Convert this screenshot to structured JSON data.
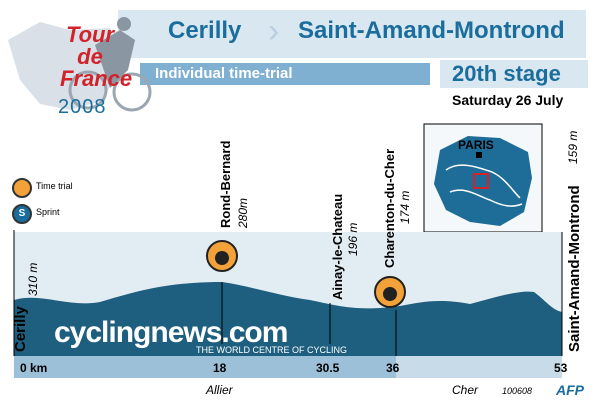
{
  "colors": {
    "accent": "#1a6d9c",
    "profile_fill": "#1e5e7e",
    "logo_red": "#d2232a",
    "brand_blue": "#1a6d9c",
    "bar": "#9cc0d8"
  },
  "logo": {
    "line1": "Tour",
    "line2": "de",
    "line3": "France",
    "year": "2008"
  },
  "header": {
    "start": "Cerilly",
    "arrow": "›",
    "finish": "Saint-Amand-Montrond",
    "subtitle": "Individual time-trial",
    "stage": "20th stage",
    "date": "Saturday 26 July"
  },
  "legend": {
    "time_trial": "Time trial",
    "sprint": "Sprint"
  },
  "map": {
    "city": "PARIS"
  },
  "profile": {
    "start": {
      "name": "Cerilly",
      "alt": "310 m"
    },
    "finish": {
      "name": "Saint-Amand-Montrond",
      "alt": "159 m"
    },
    "points": [
      {
        "name": "Rond-Bernard",
        "alt": "280m"
      },
      {
        "name": "Ainay-le-Chateau",
        "alt": "196 m"
      },
      {
        "name": "Charenton-du-Cher",
        "alt": "174 m"
      }
    ],
    "km": [
      "0 km",
      "18",
      "30.5",
      "36",
      "53"
    ],
    "regions": [
      "Allier",
      "Cher"
    ]
  },
  "watermark": {
    "brand": "cyclingnews.com",
    "tagline": "THE WORLD CENTRE OF CYCLING"
  },
  "footer": {
    "code": "100608",
    "agency": "AFP"
  }
}
